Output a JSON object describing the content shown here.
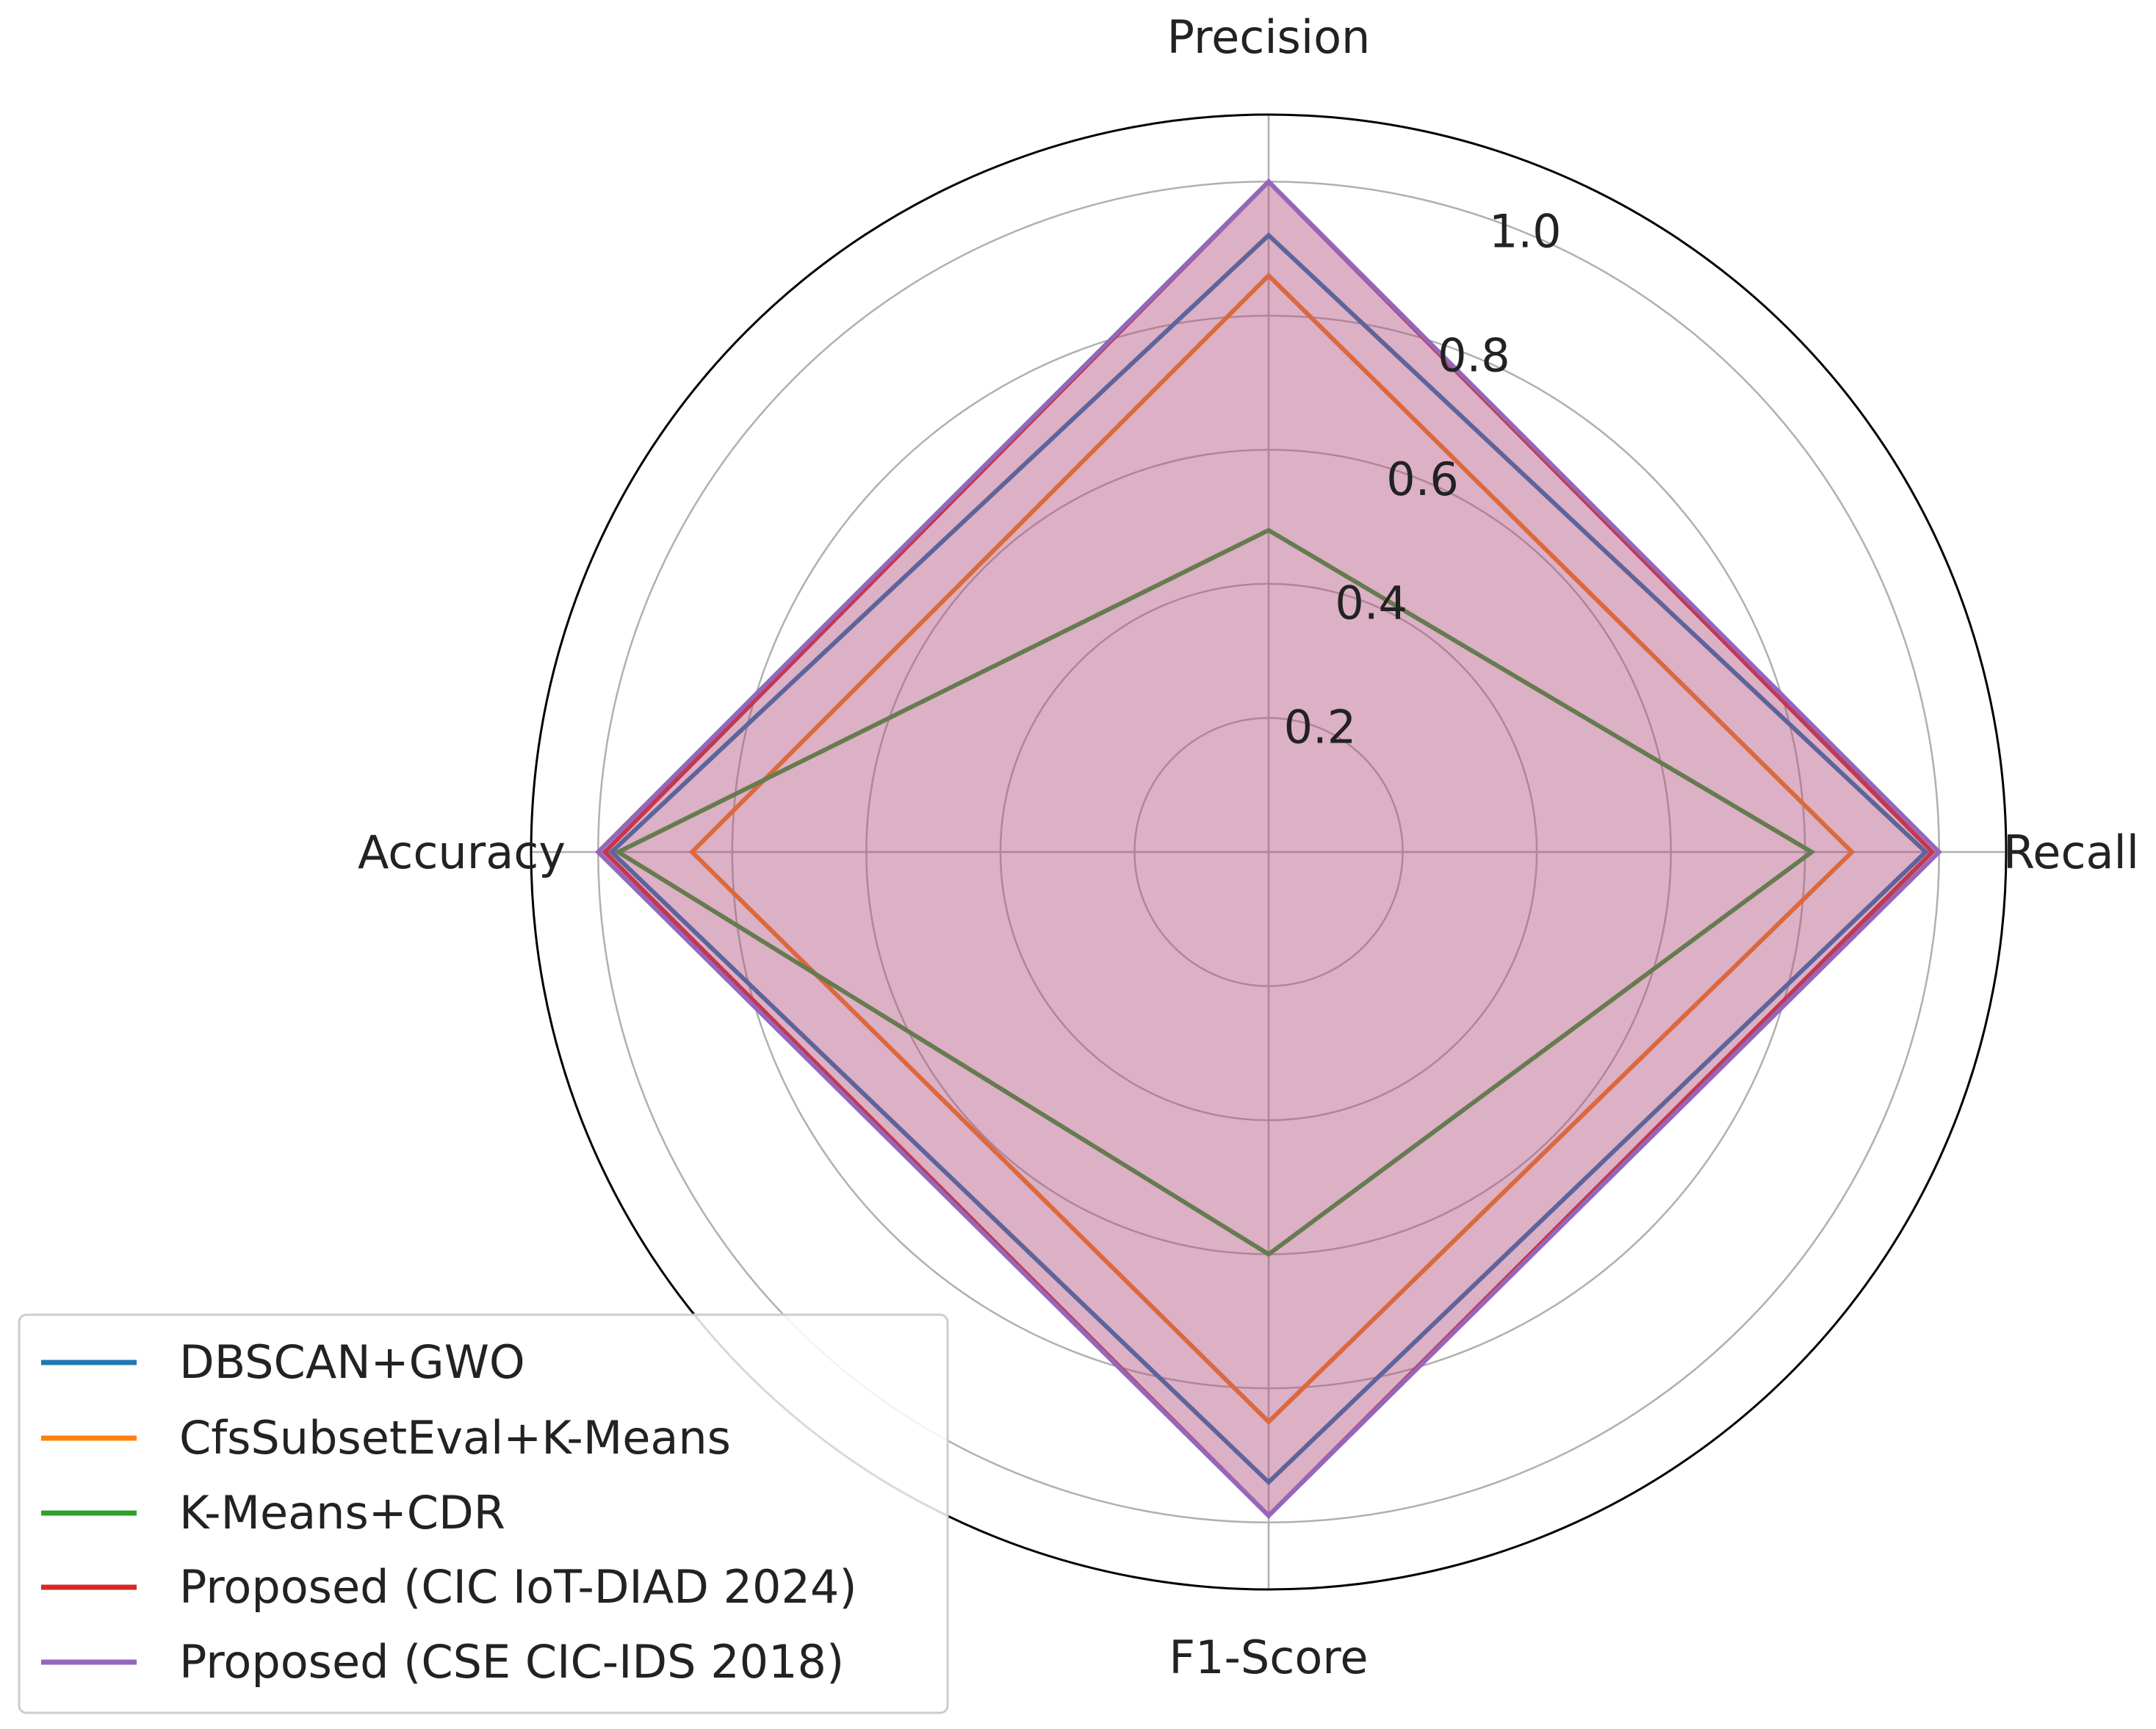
{
  "chart_data": {
    "type": "radar",
    "axes": [
      "Precision",
      "Recall",
      "F1-Score",
      "Accuracy"
    ],
    "rlim": [
      0,
      1.1
    ],
    "ticks": [
      0.2,
      0.4,
      0.6,
      0.8,
      1.0
    ],
    "tick_labels": [
      "0.2",
      "0.4",
      "0.6",
      "0.8",
      "1.0"
    ],
    "grid": true,
    "legend_position": "lower-left",
    "series": [
      {
        "name": "DBSCAN+GWO",
        "color": "#1f77b4",
        "fill": false,
        "values": [
          0.92,
          0.98,
          0.94,
          0.98
        ]
      },
      {
        "name": "CfsSubsetEval+K-Means",
        "color": "#ff7f0e",
        "fill": false,
        "values": [
          0.86,
          0.87,
          0.85,
          0.86
        ]
      },
      {
        "name": "K-Means+CDR",
        "color": "#2ca02c",
        "fill": false,
        "values": [
          0.48,
          0.81,
          0.6,
          0.97
        ]
      },
      {
        "name": "Proposed (CIC IoT-DIAD 2024)",
        "color": "#d62728",
        "fill": true,
        "values": [
          1.0,
          0.99,
          0.99,
          0.99
        ]
      },
      {
        "name": "Proposed (CSE CIC-IDS 2018)",
        "color": "#9467bd",
        "fill": true,
        "values": [
          1.0,
          1.0,
          0.99,
          1.0
        ]
      }
    ]
  }
}
